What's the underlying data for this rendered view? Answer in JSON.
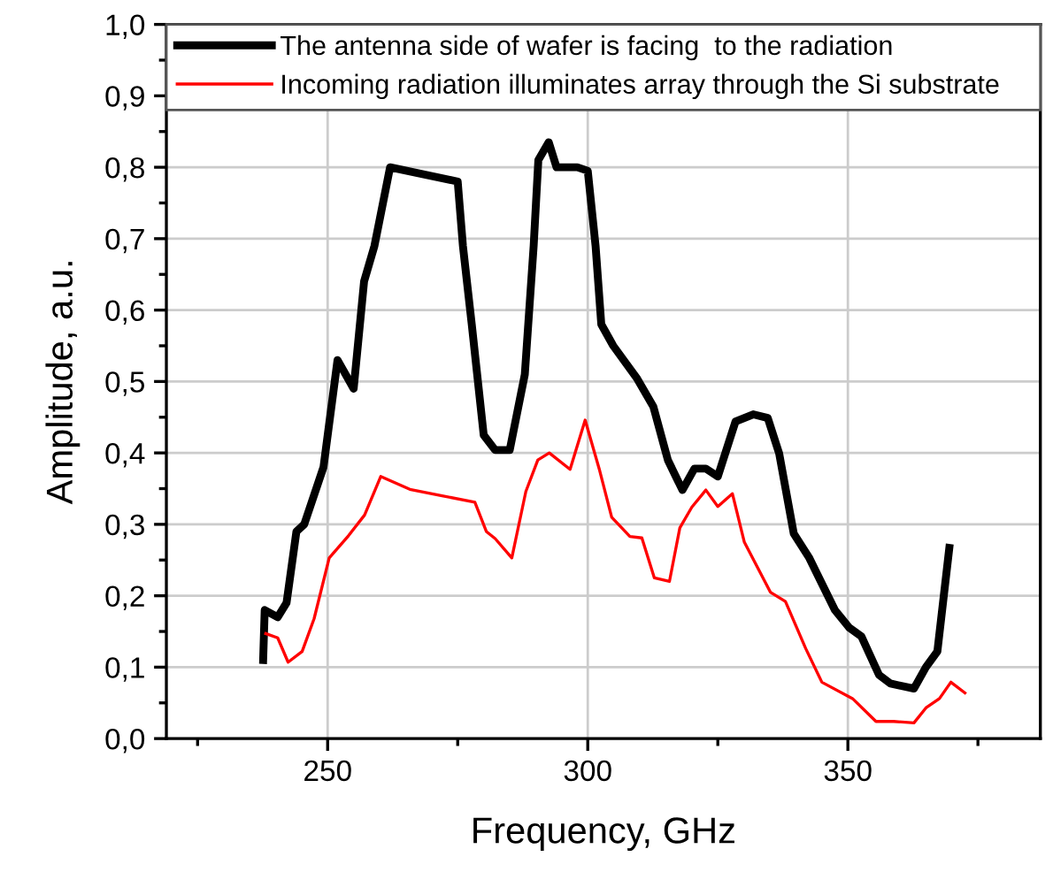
{
  "chart_data": {
    "type": "line",
    "xlabel": "Frequency, GHz",
    "ylabel": "Amplitude, a.u.",
    "xlim": [
      219,
      387
    ],
    "ylim": [
      0,
      1
    ],
    "xticks": [
      {
        "value": 225,
        "label": null
      },
      250,
      {
        "value": 275,
        "label": null
      },
      300,
      {
        "value": 325,
        "label": null
      },
      350,
      {
        "value": 375,
        "label": null
      }
    ],
    "yticks": [
      {
        "value": 0,
        "label": "0,0"
      },
      {
        "value": 0.05,
        "label": null
      },
      {
        "value": 0.1,
        "label": "0,1"
      },
      {
        "value": 0.15,
        "label": null
      },
      {
        "value": 0.2,
        "label": "0,2"
      },
      {
        "value": 0.25,
        "label": null
      },
      {
        "value": 0.3,
        "label": "0,3"
      },
      {
        "value": 0.35,
        "label": null
      },
      {
        "value": 0.4,
        "label": "0,4"
      },
      {
        "value": 0.45,
        "label": null
      },
      {
        "value": 0.5,
        "label": "0,5"
      },
      {
        "value": 0.55,
        "label": null
      },
      {
        "value": 0.6,
        "label": "0,6"
      },
      {
        "value": 0.65,
        "label": null
      },
      {
        "value": 0.7,
        "label": "0,7"
      },
      {
        "value": 0.75,
        "label": null
      },
      {
        "value": 0.8,
        "label": "0,8"
      },
      {
        "value": 0.85,
        "label": null
      },
      {
        "value": 0.9,
        "label": "0,9"
      },
      {
        "value": 0.95,
        "label": null
      },
      {
        "value": 1.0,
        "label": "1,0"
      }
    ],
    "grid": true,
    "legend": "top",
    "marker": "none",
    "line_style": "solid",
    "series": [
      {
        "name": "The antenna side of wafer is facing  to the radiation",
        "color": "#000000",
        "x": [
          237.6,
          237.9,
          240.4,
          242.1,
          244,
          245.5,
          249.2,
          251.9,
          255,
          257,
          259,
          262,
          275,
          276,
          277.7,
          280,
          282.2,
          285,
          287.9,
          289.6,
          290.5,
          292.5,
          294,
          298,
          300,
          301.5,
          302.6,
          304.9,
          309.4,
          312.6,
          315.4,
          318.2,
          320.5,
          322.7,
          325,
          328.4,
          331.8,
          334.6,
          336.8,
          339.6,
          342.5,
          347.5,
          350.3,
          352.6,
          356,
          358.2,
          362.7,
          365,
          367.2,
          369.5
        ],
        "values": [
          0.11,
          0.18,
          0.17,
          0.19,
          0.29,
          0.3,
          0.38,
          0.53,
          0.49,
          0.64,
          0.69,
          0.8,
          0.78,
          0.69,
          0.58,
          0.425,
          0.404,
          0.404,
          0.51,
          0.69,
          0.81,
          0.835,
          0.8,
          0.8,
          0.795,
          0.69,
          0.58,
          0.55,
          0.505,
          0.465,
          0.39,
          0.348,
          0.378,
          0.378,
          0.367,
          0.444,
          0.454,
          0.449,
          0.399,
          0.287,
          0.254,
          0.18,
          0.155,
          0.143,
          0.089,
          0.077,
          0.07,
          0.1,
          0.122,
          0.267
        ]
      },
      {
        "name": "Incoming radiation illuminates array through the Si substrate",
        "color": "#ff0000",
        "x": [
          238.1,
          240.4,
          242.4,
          245.1,
          247.4,
          250.3,
          254,
          257.1,
          260.2,
          265.8,
          272,
          278.3,
          280.5,
          282.2,
          285.4,
          288.1,
          290.4,
          292.6,
          296.6,
          299.5,
          302.3,
          304.6,
          308.1,
          310.4,
          312.8,
          315.7,
          317.7,
          320,
          322.7,
          325,
          327.8,
          330.1,
          335.1,
          338,
          341.9,
          345,
          350.9,
          355.4,
          358.8,
          362.7,
          365,
          367.6,
          369.8,
          372.5
        ],
        "values": [
          0.147,
          0.141,
          0.107,
          0.122,
          0.168,
          0.253,
          0.284,
          0.313,
          0.367,
          0.349,
          0.34,
          0.331,
          0.29,
          0.28,
          0.253,
          0.346,
          0.39,
          0.4,
          0.377,
          0.446,
          0.375,
          0.31,
          0.283,
          0.281,
          0.225,
          0.22,
          0.295,
          0.324,
          0.348,
          0.325,
          0.343,
          0.275,
          0.205,
          0.192,
          0.126,
          0.079,
          0.056,
          0.024,
          0.024,
          0.022,
          0.043,
          0.056,
          0.079,
          0.064
        ]
      }
    ]
  }
}
